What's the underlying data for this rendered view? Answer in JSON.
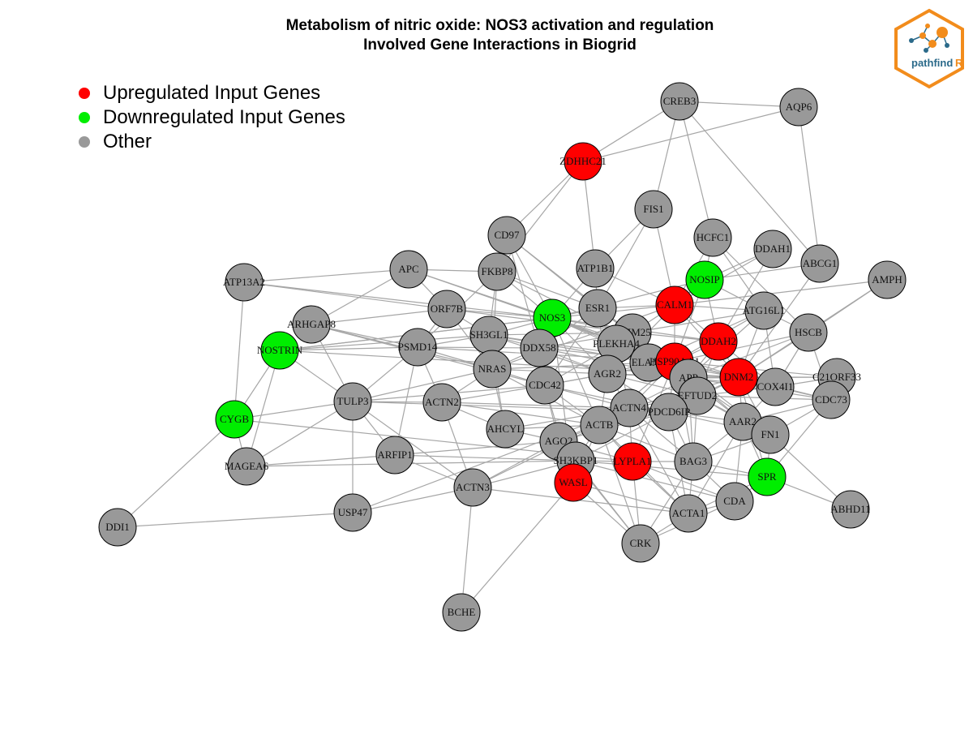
{
  "title": {
    "line1": "Metabolism of nitric oxide: NOS3 activation and regulation",
    "line2": "Involved Gene Interactions in Biogrid"
  },
  "legend": [
    {
      "label": "Upregulated Input Genes",
      "color": "#ff0000"
    },
    {
      "label": "Downregulated Input Genes",
      "color": "#00ee00"
    },
    {
      "label": "Other",
      "color": "#999999"
    }
  ],
  "colors": {
    "up": "#ff0000",
    "down": "#00ee00",
    "other": "#999999",
    "edge": "#a6a6a6"
  },
  "logo": {
    "text_main": "pathfind",
    "text_accent": "R",
    "accent_color": "#f28c1c",
    "text_color": "#2b6a8a"
  },
  "nodes": [
    {
      "id": "CREB3",
      "status": "other"
    },
    {
      "id": "AQP6",
      "status": "other"
    },
    {
      "id": "ZDHHC21",
      "status": "up"
    },
    {
      "id": "FIS1",
      "status": "other"
    },
    {
      "id": "CD97",
      "status": "other"
    },
    {
      "id": "HCFC1",
      "status": "other"
    },
    {
      "id": "DDAH1",
      "status": "other"
    },
    {
      "id": "ABCG1",
      "status": "other"
    },
    {
      "id": "AMPH",
      "status": "other"
    },
    {
      "id": "ATP13A2",
      "status": "other"
    },
    {
      "id": "APC",
      "status": "other"
    },
    {
      "id": "FKBP8",
      "status": "other"
    },
    {
      "id": "ATP1B1",
      "status": "other"
    },
    {
      "id": "NOSIP",
      "status": "down"
    },
    {
      "id": "CALM1",
      "status": "up"
    },
    {
      "id": "ORF7B",
      "status": "other"
    },
    {
      "id": "NOS3",
      "status": "down"
    },
    {
      "id": "ESR1",
      "status": "other"
    },
    {
      "id": "ATG16L1",
      "status": "other"
    },
    {
      "id": "ARHGAP8",
      "status": "other"
    },
    {
      "id": "NOSTRIN",
      "status": "down"
    },
    {
      "id": "PSMD14",
      "status": "other"
    },
    {
      "id": "SH3GL1",
      "status": "other"
    },
    {
      "id": "DDX58",
      "status": "other"
    },
    {
      "id": "TRIM25",
      "status": "other"
    },
    {
      "id": "PLEKHA4",
      "status": "other"
    },
    {
      "id": "DDAH2",
      "status": "up"
    },
    {
      "id": "HSCB",
      "status": "other"
    },
    {
      "id": "NRAS",
      "status": "other"
    },
    {
      "id": "ELANE",
      "status": "other"
    },
    {
      "id": "HSP90AA1",
      "status": "up"
    },
    {
      "id": "AGR2",
      "status": "other"
    },
    {
      "id": "APP",
      "status": "other"
    },
    {
      "id": "DNM2",
      "status": "up"
    },
    {
      "id": "COX4I1",
      "status": "other"
    },
    {
      "id": "C21ORF33",
      "status": "other"
    },
    {
      "id": "CDC42",
      "status": "other"
    },
    {
      "id": "TULP3",
      "status": "other"
    },
    {
      "id": "ACTN2",
      "status": "other"
    },
    {
      "id": "EFTUD2",
      "status": "other"
    },
    {
      "id": "CDC73",
      "status": "other"
    },
    {
      "id": "ACTN4",
      "status": "other"
    },
    {
      "id": "PDCD6IP",
      "status": "other"
    },
    {
      "id": "CYGB",
      "status": "down"
    },
    {
      "id": "AHCYL",
      "status": "other"
    },
    {
      "id": "ACTB",
      "status": "other"
    },
    {
      "id": "AAR2",
      "status": "other"
    },
    {
      "id": "FN1",
      "status": "other"
    },
    {
      "id": "AGO2",
      "status": "other"
    },
    {
      "id": "ARFIP1",
      "status": "other"
    },
    {
      "id": "SH3KBP1",
      "status": "other"
    },
    {
      "id": "LYPLA1",
      "status": "up"
    },
    {
      "id": "BAG3",
      "status": "other"
    },
    {
      "id": "MAGEA6",
      "status": "other"
    },
    {
      "id": "SPR",
      "status": "down"
    },
    {
      "id": "WASL",
      "status": "up"
    },
    {
      "id": "ACTN3",
      "status": "other"
    },
    {
      "id": "CDA",
      "status": "other"
    },
    {
      "id": "USP47",
      "status": "other"
    },
    {
      "id": "ACTA1",
      "status": "other"
    },
    {
      "id": "ABHD11",
      "status": "other"
    },
    {
      "id": "DDI1",
      "status": "other"
    },
    {
      "id": "CRK",
      "status": "other"
    },
    {
      "id": "BCHE",
      "status": "other"
    }
  ],
  "edges": [
    [
      "CREB3",
      "ZDHHC21"
    ],
    [
      "CREB3",
      "AQP6"
    ],
    [
      "CREB3",
      "FIS1"
    ],
    [
      "CREB3",
      "HCFC1"
    ],
    [
      "CREB3",
      "ABCG1"
    ],
    [
      "AQP6",
      "ZDHHC21"
    ],
    [
      "ZDHHC21",
      "CD97"
    ],
    [
      "ZDHHC21",
      "FKBP8"
    ],
    [
      "ZDHHC21",
      "ATP1B1"
    ],
    [
      "FIS1",
      "ATP1B1"
    ],
    [
      "FIS1",
      "CALM1"
    ],
    [
      "FIS1",
      "ESR1"
    ],
    [
      "HCFC1",
      "NOSIP"
    ],
    [
      "HCFC1",
      "CALM1"
    ],
    [
      "HCFC1",
      "ATG16L1"
    ],
    [
      "HCFC1",
      "HSCB"
    ],
    [
      "DDAH1",
      "NOSIP"
    ],
    [
      "DDAH1",
      "DDAH2"
    ],
    [
      "DDAH1",
      "CALM1"
    ],
    [
      "ABCG1",
      "AQP6"
    ],
    [
      "ABCG1",
      "DNM2"
    ],
    [
      "ABCG1",
      "NOSIP"
    ],
    [
      "AMPH",
      "CALM1"
    ],
    [
      "AMPH",
      "DNM2"
    ],
    [
      "AMPH",
      "HSCB"
    ],
    [
      "ATP13A2",
      "CYGB"
    ],
    [
      "ATP13A2",
      "APC"
    ],
    [
      "ATP13A2",
      "NOS3"
    ],
    [
      "ATP13A2",
      "ORF7B"
    ],
    [
      "APC",
      "ORF7B"
    ],
    [
      "APC",
      "ARHGAP8"
    ],
    [
      "APC",
      "FKBP8"
    ],
    [
      "APC",
      "NOS3"
    ],
    [
      "APC",
      "HSP90AA1"
    ],
    [
      "FKBP8",
      "NOS3"
    ],
    [
      "FKBP8",
      "ESR1"
    ],
    [
      "FKBP8",
      "HSP90AA1"
    ],
    [
      "FKBP8",
      "SH3GL1"
    ],
    [
      "FKBP8",
      "PSMD14"
    ],
    [
      "FKBP8",
      "NRAS"
    ],
    [
      "CD97",
      "NOS3"
    ],
    [
      "CD97",
      "DDX58"
    ],
    [
      "CD97",
      "ESR1"
    ],
    [
      "CD97",
      "APP"
    ],
    [
      "ATP1B1",
      "ESR1"
    ],
    [
      "ATP1B1",
      "NOS3"
    ],
    [
      "ATP1B1",
      "CALM1"
    ],
    [
      "NOSIP",
      "NOS3"
    ],
    [
      "NOSIP",
      "CALM1"
    ],
    [
      "NOSIP",
      "ATG16L1"
    ],
    [
      "NOSIP",
      "DDAH2"
    ],
    [
      "NOSIP",
      "HSP90AA1"
    ],
    [
      "CALM1",
      "NOS3"
    ],
    [
      "CALM1",
      "ESR1"
    ],
    [
      "CALM1",
      "TRIM25"
    ],
    [
      "CALM1",
      "DDAH2"
    ],
    [
      "CALM1",
      "HSP90AA1"
    ],
    [
      "CALM1",
      "ATG16L1"
    ],
    [
      "CALM1",
      "NRAS"
    ],
    [
      "CALM1",
      "DNM2"
    ],
    [
      "CALM1",
      "AGR2"
    ],
    [
      "ORF7B",
      "NOS3"
    ],
    [
      "ORF7B",
      "SH3GL1"
    ],
    [
      "ORF7B",
      "NRAS"
    ],
    [
      "ORF7B",
      "PSMD14"
    ],
    [
      "ORF7B",
      "TRIM25"
    ],
    [
      "ORF7B",
      "ARHGAP8"
    ],
    [
      "NOS3",
      "ESR1"
    ],
    [
      "NOS3",
      "HSP90AA1"
    ],
    [
      "NOS3",
      "SH3GL1"
    ],
    [
      "NOS3",
      "DDX58"
    ],
    [
      "NOS3",
      "NOSTRIN"
    ],
    [
      "NOS3",
      "DDAH2"
    ],
    [
      "NOS3",
      "AGR2"
    ],
    [
      "NOS3",
      "CDC42"
    ],
    [
      "NOS3",
      "TRIM25"
    ],
    [
      "NOS3",
      "PLEKHA4"
    ],
    [
      "NOS3",
      "ACTB"
    ],
    [
      "NOS3",
      "WASL"
    ],
    [
      "NOS3",
      "DNM2"
    ],
    [
      "NOS3",
      "APP"
    ],
    [
      "ESR1",
      "HSP90AA1"
    ],
    [
      "ESR1",
      "TRIM25"
    ],
    [
      "ESR1",
      "DDX58"
    ],
    [
      "ESR1",
      "APP"
    ],
    [
      "ESR1",
      "AGR2"
    ],
    [
      "ESR1",
      "CDC42"
    ],
    [
      "ESR1",
      "PLEKHA4"
    ],
    [
      "ATG16L1",
      "HSP90AA1"
    ],
    [
      "ATG16L1",
      "DNM2"
    ],
    [
      "ATG16L1",
      "HSCB"
    ],
    [
      "ATG16L1",
      "COX4I1"
    ],
    [
      "ATG16L1",
      "APP"
    ],
    [
      "ATG16L1",
      "TRIM25"
    ],
    [
      "ATG16L1",
      "ELANE"
    ],
    [
      "ARHGAP8",
      "PSMD14"
    ],
    [
      "ARHGAP8",
      "TULP3"
    ],
    [
      "ARHGAP8",
      "NRAS"
    ],
    [
      "ARHGAP8",
      "CDC42"
    ],
    [
      "NOSTRIN",
      "NOS3"
    ],
    [
      "NOSTRIN",
      "TULP3"
    ],
    [
      "NOSTRIN",
      "MAGEA6"
    ],
    [
      "NOSTRIN",
      "CYGB"
    ],
    [
      "NOSTRIN",
      "DNM2"
    ],
    [
      "NOSTRIN",
      "SH3GL1"
    ],
    [
      "NOSTRIN",
      "PSMD14"
    ],
    [
      "PSMD14",
      "SH3GL1"
    ],
    [
      "PSMD14",
      "NRAS"
    ],
    [
      "PSMD14",
      "ARFIP1"
    ],
    [
      "PSMD14",
      "DDX58"
    ],
    [
      "PSMD14",
      "TULP3"
    ],
    [
      "PSMD14",
      "ACTN2"
    ],
    [
      "PSMD14",
      "HSP90AA1"
    ],
    [
      "SH3GL1",
      "DDX58"
    ],
    [
      "SH3GL1",
      "NRAS"
    ],
    [
      "SH3GL1",
      "AGR2"
    ],
    [
      "SH3GL1",
      "TRIM25"
    ],
    [
      "SH3GL1",
      "HSP90AA1"
    ],
    [
      "SH3GL1",
      "AHCYL"
    ],
    [
      "SH3GL1",
      "DNM2"
    ],
    [
      "DDX58",
      "TRIM25"
    ],
    [
      "DDX58",
      "NRAS"
    ],
    [
      "DDX58",
      "CDC42"
    ],
    [
      "DDX58",
      "AGR2"
    ],
    [
      "DDX58",
      "HSP90AA1"
    ],
    [
      "DDX58",
      "APP"
    ],
    [
      "TRIM25",
      "PLEKHA4"
    ],
    [
      "TRIM25",
      "HSP90AA1"
    ],
    [
      "TRIM25",
      "AGR2"
    ],
    [
      "TRIM25",
      "ELANE"
    ],
    [
      "TRIM25",
      "DDAH2"
    ],
    [
      "TRIM25",
      "APP"
    ],
    [
      "PLEKHA4",
      "HSP90AA1"
    ],
    [
      "PLEKHA4",
      "AGR2"
    ],
    [
      "PLEKHA4",
      "ELANE"
    ],
    [
      "PLEKHA4",
      "CDC42"
    ],
    [
      "PLEKHA4",
      "ACTN4"
    ],
    [
      "DDAH2",
      "HSP90AA1"
    ],
    [
      "DDAH2",
      "DNM2"
    ],
    [
      "DDAH2",
      "APP"
    ],
    [
      "DDAH2",
      "COX4I1"
    ],
    [
      "DDAH2",
      "EFTUD2"
    ],
    [
      "HSCB",
      "DNM2"
    ],
    [
      "HSCB",
      "HSP90AA1"
    ],
    [
      "HSCB",
      "COX4I1"
    ],
    [
      "HSCB",
      "CDC73"
    ],
    [
      "HSCB",
      "APP"
    ],
    [
      "NRAS",
      "AGR2"
    ],
    [
      "NRAS",
      "CDC42"
    ],
    [
      "NRAS",
      "TULP3"
    ],
    [
      "NRAS",
      "HSP90AA1"
    ],
    [
      "NRAS",
      "AHCYL"
    ],
    [
      "NRAS",
      "ACTN2"
    ],
    [
      "NRAS",
      "ACTB"
    ],
    [
      "ELANE",
      "HSP90AA1"
    ],
    [
      "ELANE",
      "APP"
    ],
    [
      "ELANE",
      "AGR2"
    ],
    [
      "HSP90AA1",
      "APP"
    ],
    [
      "HSP90AA1",
      "DNM2"
    ],
    [
      "HSP90AA1",
      "AGR2"
    ],
    [
      "HSP90AA1",
      "EFTUD2"
    ],
    [
      "HSP90AA1",
      "PDCD6IP"
    ],
    [
      "HSP90AA1",
      "COX4I1"
    ],
    [
      "HSP90AA1",
      "C21ORF33"
    ],
    [
      "HSP90AA1",
      "CDC73"
    ],
    [
      "HSP90AA1",
      "AAR2"
    ],
    [
      "HSP90AA1",
      "ACTN4"
    ],
    [
      "HSP90AA1",
      "BAG3"
    ],
    [
      "HSP90AA1",
      "FN1"
    ],
    [
      "HSP90AA1",
      "LYPLA1"
    ],
    [
      "HSP90AA1",
      "CDC42"
    ],
    [
      "HSP90AA1",
      "ACTB"
    ],
    [
      "AGR2",
      "APP"
    ],
    [
      "AGR2",
      "CDC42"
    ],
    [
      "AGR2",
      "ACTN4"
    ],
    [
      "AGR2",
      "EFTUD2"
    ],
    [
      "AGR2",
      "ACTB"
    ],
    [
      "AGR2",
      "DNM2"
    ],
    [
      "AGR2",
      "PDCD6IP"
    ],
    [
      "APP",
      "DNM2"
    ],
    [
      "APP",
      "EFTUD2"
    ],
    [
      "APP",
      "COX4I1"
    ],
    [
      "APP",
      "PDCD6IP"
    ],
    [
      "APP",
      "ACTN4"
    ],
    [
      "APP",
      "AAR2"
    ],
    [
      "APP",
      "FN1"
    ],
    [
      "APP",
      "BAG3"
    ],
    [
      "APP",
      "C21ORF33"
    ],
    [
      "APP",
      "CDC73"
    ],
    [
      "DNM2",
      "COX4I1"
    ],
    [
      "DNM2",
      "C21ORF33"
    ],
    [
      "DNM2",
      "CDC73"
    ],
    [
      "DNM2",
      "EFTUD2"
    ],
    [
      "DNM2",
      "AAR2"
    ],
    [
      "DNM2",
      "FN1"
    ],
    [
      "DNM2",
      "ACTN4"
    ],
    [
      "DNM2",
      "PDCD6IP"
    ],
    [
      "DNM2",
      "SPR"
    ],
    [
      "COX4I1",
      "C21ORF33"
    ],
    [
      "COX4I1",
      "CDC73"
    ],
    [
      "COX4I1",
      "EFTUD2"
    ],
    [
      "COX4I1",
      "AAR2"
    ],
    [
      "CDC42",
      "TULP3"
    ],
    [
      "CDC42",
      "ACTN4"
    ],
    [
      "CDC42",
      "ACTB"
    ],
    [
      "CDC42",
      "WASL"
    ],
    [
      "CDC42",
      "AGO2"
    ],
    [
      "CDC42",
      "PDCD6IP"
    ],
    [
      "TULP3",
      "CYGB"
    ],
    [
      "TULP3",
      "MAGEA6"
    ],
    [
      "TULP3",
      "USP47"
    ],
    [
      "TULP3",
      "ACTN2"
    ],
    [
      "TULP3",
      "ARFIP1"
    ],
    [
      "TULP3",
      "PDCD6IP"
    ],
    [
      "ACTN2",
      "ACTN3"
    ],
    [
      "ACTN2",
      "AHCYL"
    ],
    [
      "ACTN2",
      "ACTB"
    ],
    [
      "ACTN2",
      "ACTN4"
    ],
    [
      "ACTN2",
      "CDC42"
    ],
    [
      "EFTUD2",
      "PDCD6IP"
    ],
    [
      "EFTUD2",
      "AAR2"
    ],
    [
      "EFTUD2",
      "CDC73"
    ],
    [
      "EFTUD2",
      "FN1"
    ],
    [
      "EFTUD2",
      "ACTN4"
    ],
    [
      "EFTUD2",
      "BAG3"
    ],
    [
      "CDC73",
      "AAR2"
    ],
    [
      "CDC73",
      "FN1"
    ],
    [
      "ACTN4",
      "PDCD6IP"
    ],
    [
      "ACTN4",
      "ACTB"
    ],
    [
      "ACTN4",
      "BAG3"
    ],
    [
      "ACTN4",
      "LYPLA1"
    ],
    [
      "ACTN4",
      "ACTA1"
    ],
    [
      "ACTN4",
      "AGO2"
    ],
    [
      "PDCD6IP",
      "ACTB"
    ],
    [
      "PDCD6IP",
      "BAG3"
    ],
    [
      "PDCD6IP",
      "SH3KBP1"
    ],
    [
      "PDCD6IP",
      "AGO2"
    ],
    [
      "PDCD6IP",
      "AAR2"
    ],
    [
      "PDCD6IP",
      "FN1"
    ],
    [
      "PDCD6IP",
      "ACTA1"
    ],
    [
      "CYGB",
      "MAGEA6"
    ],
    [
      "CYGB",
      "DDI1"
    ],
    [
      "CYGB",
      "LYPLA1"
    ],
    [
      "AHCYL",
      "ACTB"
    ],
    [
      "AHCYL",
      "AGO2"
    ],
    [
      "AHCYL",
      "ACTN4"
    ],
    [
      "ACTB",
      "AGO2"
    ],
    [
      "ACTB",
      "SH3KBP1"
    ],
    [
      "ACTB",
      "WASL"
    ],
    [
      "ACTB",
      "LYPLA1"
    ],
    [
      "ACTB",
      "BAG3"
    ],
    [
      "ACTB",
      "ACTA1"
    ],
    [
      "ACTB",
      "CRK"
    ],
    [
      "ACTB",
      "ACTN3"
    ],
    [
      "AAR2",
      "FN1"
    ],
    [
      "AAR2",
      "BAG3"
    ],
    [
      "AAR2",
      "SPR"
    ],
    [
      "AAR2",
      "CDA"
    ],
    [
      "AAR2",
      "ACTA1"
    ],
    [
      "FN1",
      "SPR"
    ],
    [
      "FN1",
      "ABHD11"
    ],
    [
      "FN1",
      "BAG3"
    ],
    [
      "AGO2",
      "SH3KBP1"
    ],
    [
      "AGO2",
      "WASL"
    ],
    [
      "AGO2",
      "ARFIP1"
    ],
    [
      "AGO2",
      "ACTN3"
    ],
    [
      "AGO2",
      "LYPLA1"
    ],
    [
      "AGO2",
      "CRK"
    ],
    [
      "ARFIP1",
      "MAGEA6"
    ],
    [
      "ARFIP1",
      "ACTN3"
    ],
    [
      "ARFIP1",
      "SH3KBP1"
    ],
    [
      "SH3KBP1",
      "WASL"
    ],
    [
      "SH3KBP1",
      "CRK"
    ],
    [
      "SH3KBP1",
      "MAGEA6"
    ],
    [
      "SH3KBP1",
      "LYPLA1"
    ],
    [
      "SH3KBP1",
      "ACTN3"
    ],
    [
      "SH3KBP1",
      "CDA"
    ],
    [
      "SH3KBP1",
      "SPR"
    ],
    [
      "LYPLA1",
      "BAG3"
    ],
    [
      "LYPLA1",
      "CRK"
    ],
    [
      "LYPLA1",
      "ACTA1"
    ],
    [
      "LYPLA1",
      "CDA"
    ],
    [
      "BAG3",
      "ACTA1"
    ],
    [
      "BAG3",
      "CDA"
    ],
    [
      "BAG3",
      "SPR"
    ],
    [
      "BAG3",
      "CRK"
    ],
    [
      "SPR",
      "ABHD11"
    ],
    [
      "SPR",
      "CDA"
    ],
    [
      "SPR",
      "ACTA1"
    ],
    [
      "SPR",
      "CDC73"
    ],
    [
      "WASL",
      "CRK"
    ],
    [
      "WASL",
      "BCHE"
    ],
    [
      "WASL",
      "ACTA1"
    ],
    [
      "ACTN3",
      "USP47"
    ],
    [
      "ACTN3",
      "BCHE"
    ],
    [
      "ACTN3",
      "ACTA1"
    ],
    [
      "ACTN3",
      "TULP3"
    ],
    [
      "USP47",
      "DDI1"
    ],
    [
      "USP47",
      "ACTN4"
    ],
    [
      "ACTA1",
      "CRK"
    ],
    [
      "CDA",
      "CRK"
    ],
    [
      "ACTA1",
      "CDA"
    ]
  ]
}
